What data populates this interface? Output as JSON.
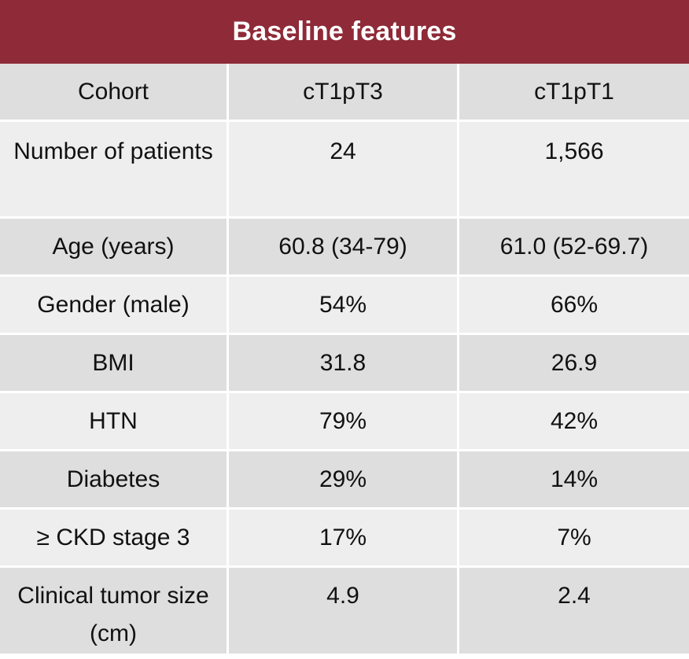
{
  "title": "Baseline features",
  "header": [
    "Cohort",
    "cT1pT3",
    "cT1pT1"
  ],
  "rows": [
    [
      "Number of patients",
      "24",
      "1,566"
    ],
    [
      "Age (years)",
      "60.8 (34-79)",
      "61.0 (52-69.7)"
    ],
    [
      "Gender (male)",
      "54%",
      "66%"
    ],
    [
      "BMI",
      "31.8",
      "26.9"
    ],
    [
      "HTN",
      "79%",
      "42%"
    ],
    [
      "Diabetes",
      "29%",
      "14%"
    ],
    [
      "≥ CKD stage 3",
      "17%",
      "7%"
    ],
    [
      "Clinical tumor size (cm)",
      "4.9",
      "2.4"
    ]
  ],
  "colors": {
    "title_bg": "#8f2a38",
    "row_dark": "#dedede",
    "row_light": "#eeeeee"
  }
}
